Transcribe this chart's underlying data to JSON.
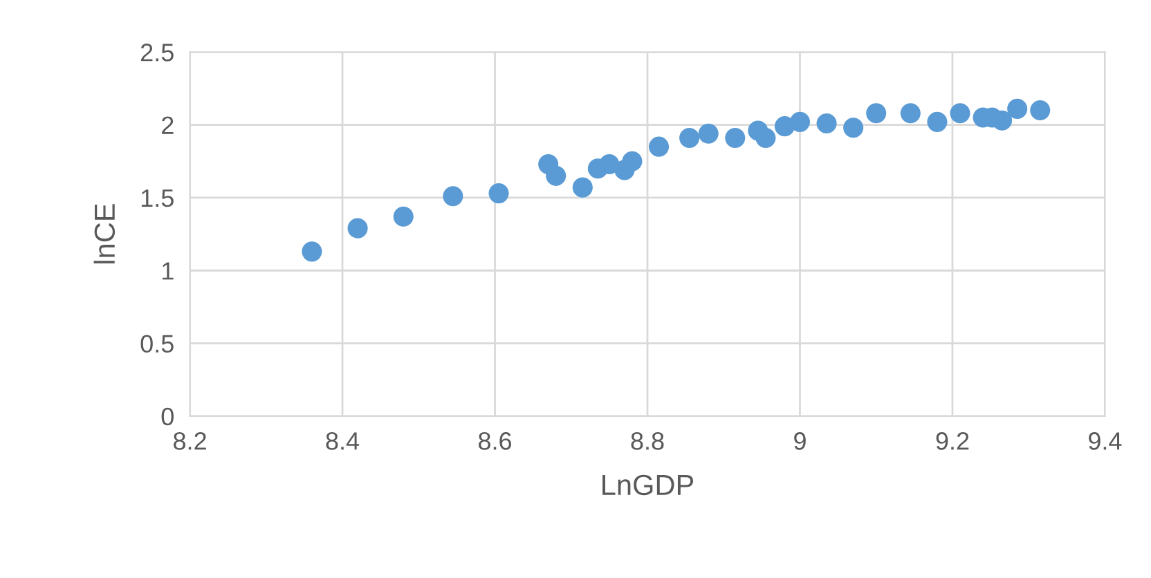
{
  "chart_data": {
    "type": "scatter",
    "xlabel": "LnGDP",
    "ylabel": "lnCE",
    "x": [
      8.36,
      8.42,
      8.48,
      8.545,
      8.605,
      8.67,
      8.68,
      8.715,
      8.735,
      8.75,
      8.77,
      8.78,
      8.815,
      8.855,
      8.88,
      8.915,
      8.945,
      8.955,
      8.98,
      9.0,
      9.035,
      9.07,
      9.1,
      9.145,
      9.18,
      9.21,
      9.24,
      9.252,
      9.265,
      9.285,
      9.315
    ],
    "values": [
      1.13,
      1.29,
      1.37,
      1.51,
      1.53,
      1.73,
      1.65,
      1.57,
      1.7,
      1.73,
      1.69,
      1.75,
      1.85,
      1.91,
      1.94,
      1.91,
      1.96,
      1.91,
      1.99,
      2.02,
      2.01,
      1.98,
      2.08,
      2.08,
      2.02,
      2.08,
      2.05,
      2.05,
      2.03,
      2.11,
      2.1
    ],
    "color": "#5b9bd5",
    "marker": "circle",
    "xlim": [
      8.2,
      9.4
    ],
    "xticks": [
      8.2,
      8.4,
      8.6,
      8.8,
      9,
      9.2,
      9.4
    ],
    "ylim": [
      0,
      2.5
    ],
    "yticks": [
      0,
      0.5,
      1,
      1.5,
      2,
      2.5
    ],
    "grid": true
  }
}
